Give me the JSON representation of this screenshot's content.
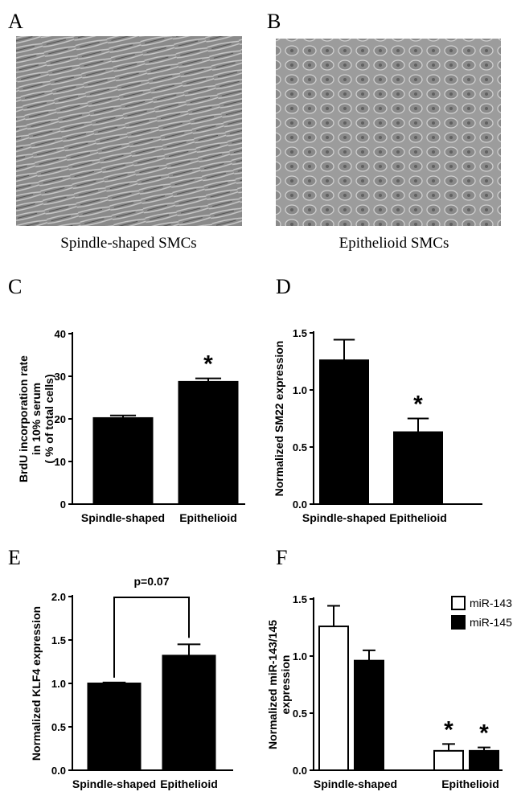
{
  "images": [
    {
      "label": "A",
      "caption": "Spindle-shaped SMCs"
    },
    {
      "label": "B",
      "caption": "Epithelioid SMCs"
    }
  ],
  "chart_data": [
    {
      "label": "C",
      "type": "bar",
      "ylabel": [
        "BrdU incorporation rate",
        "in 10% serum",
        "( % of total cells)"
      ],
      "categories": [
        "Spindle-shaped",
        "Epithelioid"
      ],
      "values": [
        20.2,
        28.7
      ],
      "errors": [
        0.6,
        0.8
      ],
      "significance": [
        null,
        "*"
      ],
      "color": "#000000",
      "ylim": [
        0,
        40
      ],
      "yticks": [
        0,
        10,
        20,
        30,
        40
      ]
    },
    {
      "label": "D",
      "type": "bar",
      "ylabel": [
        "Normalized SM22 expression"
      ],
      "categories": [
        "Spindle-shaped",
        "Epithelioid"
      ],
      "values": [
        1.26,
        0.63
      ],
      "errors": [
        0.18,
        0.12
      ],
      "significance": [
        null,
        "*"
      ],
      "color": "#000000",
      "ylim": [
        0,
        1.5
      ],
      "yticks": [
        {
          "value": 0,
          "label": "0.0"
        },
        0.5,
        {
          "value": 1,
          "label": "1.0"
        },
        1.5
      ]
    },
    {
      "label": "E",
      "type": "bar",
      "ylabel": [
        "Normalized KLF4 expression"
      ],
      "categories": [
        "Spindle-shaped",
        "Epithelioid"
      ],
      "values": [
        1.0,
        1.32
      ],
      "errors": [
        0.01,
        0.13
      ],
      "annotation": "p=0.07",
      "color": "#000000",
      "ylim": [
        0,
        2
      ],
      "yticks": [
        {
          "value": 0,
          "label": "0.0"
        },
        0.5,
        {
          "value": 1,
          "label": "1.0"
        },
        1.5,
        {
          "value": 2,
          "label": "2.0"
        }
      ]
    },
    {
      "label": "F",
      "type": "grouped-bar",
      "ylabel": [
        "Normalized miR-143/145",
        "expression"
      ],
      "categories": [
        "Spindle-shaped",
        "Epithelioid"
      ],
      "series": [
        {
          "name": "miR-143",
          "color": "#ffffff",
          "values": [
            1.26,
            0.17
          ],
          "errors": [
            0.18,
            0.06
          ],
          "significance": [
            null,
            "*"
          ]
        },
        {
          "name": "miR-145",
          "color": "#000000",
          "values": [
            0.96,
            0.17
          ],
          "errors": [
            0.09,
            0.03
          ],
          "significance": [
            null,
            "*"
          ]
        }
      ],
      "legend": "upper right",
      "ylim": [
        0,
        1.5
      ],
      "yticks": [
        {
          "value": 0,
          "label": "0.0"
        },
        0.5,
        {
          "value": 1,
          "label": "1.0"
        },
        1.5
      ]
    }
  ]
}
